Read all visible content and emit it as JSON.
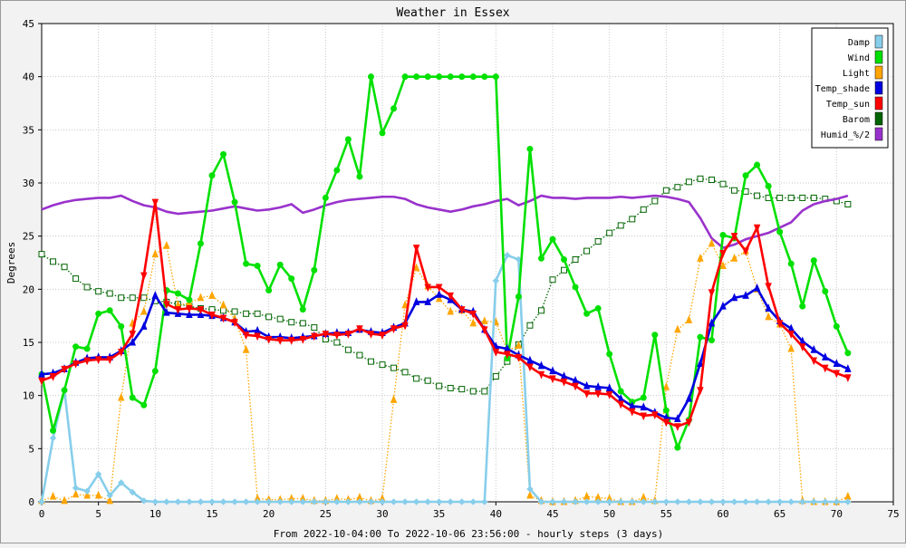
{
  "chart_data": {
    "type": "line",
    "title": "Weather in Essex",
    "ylabel": "Degrees",
    "xlabel": "From 2022-10-04:00 To 2022-10-06 23:56:00 - hourly steps (3 days)",
    "xlim": [
      0,
      75
    ],
    "ylim": [
      0,
      45
    ],
    "xticks": [
      0,
      5,
      10,
      15,
      20,
      25,
      30,
      35,
      40,
      45,
      50,
      55,
      60,
      65,
      70,
      75
    ],
    "yticks": [
      0,
      5,
      10,
      15,
      20,
      25,
      30,
      35,
      40,
      45
    ],
    "grid": true,
    "legend_position": "top-right",
    "series": [
      {
        "name": "Damp",
        "color": "#87ceeb",
        "marker": "diamond",
        "style": "solid",
        "values": [
          0,
          6,
          10.5,
          1.3,
          1,
          2.6,
          0.6,
          1.8,
          0.9,
          0.1,
          0,
          0,
          0,
          0,
          0,
          0,
          0,
          0,
          0,
          0,
          0,
          0,
          0,
          0,
          0,
          0,
          0,
          0,
          0,
          0,
          0,
          0,
          0,
          0,
          0,
          0,
          0,
          0,
          0,
          0,
          20.8,
          23.2,
          22.8,
          1.2,
          0,
          0,
          0,
          0,
          0,
          0,
          0,
          0,
          0,
          0,
          0,
          0,
          0,
          0,
          0,
          0,
          0,
          0,
          0,
          0,
          0,
          0,
          0,
          0,
          0,
          0,
          0,
          0
        ]
      },
      {
        "name": "Wind",
        "color": "#00e000",
        "marker": "circle",
        "style": "solid",
        "values": [
          12,
          6.7,
          10.5,
          14.6,
          14.4,
          17.7,
          18,
          16.5,
          9.8,
          9.1,
          12.3,
          19.9,
          19.6,
          19,
          24.3,
          30.7,
          32.7,
          28.2,
          22.4,
          22.2,
          19.9,
          22.3,
          21,
          18.1,
          21.8,
          28.6,
          31.2,
          34.1,
          30.6,
          40,
          34.7,
          37,
          40,
          40,
          40,
          40,
          40,
          40,
          40,
          40,
          40,
          13.5,
          19.3,
          33.2,
          22.9,
          24.7,
          22.8,
          20.2,
          17.7,
          18.2,
          13.9,
          10.4,
          9.4,
          9.8,
          15.7,
          8.6,
          5.1,
          7.7,
          15.5,
          15.2,
          25.1,
          24.8,
          30.7,
          31.7,
          29.7,
          25.4,
          22.4,
          18.4,
          22.7,
          19.8,
          16.5,
          14
        ]
      },
      {
        "name": "Light",
        "color": "#ffa500",
        "marker": "triangle",
        "style": "dotted",
        "values": [
          0.1,
          0.5,
          0.1,
          0.7,
          0.6,
          0.6,
          0.1,
          9.8,
          16.8,
          17.9,
          23.3,
          24.1,
          18.5,
          18.7,
          19.2,
          19.4,
          18.5,
          17.2,
          14.3,
          0.3,
          0.2,
          0.2,
          0.3,
          0.3,
          0.1,
          0.1,
          0.3,
          0.2,
          0.4,
          0.1,
          0.3,
          9.6,
          18.5,
          22,
          20.3,
          19.1,
          17.9,
          18,
          16.8,
          17,
          16.9,
          14.2,
          14.7,
          0.6,
          0.1,
          0,
          0,
          0.1,
          0.5,
          0.4,
          0.3,
          0,
          0,
          0.4,
          0.1,
          10.8,
          16.2,
          17.1,
          22.9,
          24.3,
          22.2,
          22.9,
          23.6,
          20,
          17.4,
          16.7,
          14.4,
          0.1,
          0,
          0,
          0,
          0.5
        ]
      },
      {
        "name": "Temp_shade",
        "color": "#0000e0",
        "marker": "triangle",
        "style": "solid",
        "values": [
          12,
          12.1,
          12.5,
          13.1,
          13.5,
          13.6,
          13.6,
          14.2,
          15,
          16.5,
          19.4,
          17.8,
          17.7,
          17.6,
          17.6,
          17.5,
          17.3,
          16.9,
          16,
          16.1,
          15.5,
          15.5,
          15.4,
          15.5,
          15.6,
          15.8,
          15.9,
          15.9,
          16.2,
          16,
          15.9,
          16.4,
          16.8,
          18.8,
          18.8,
          19.5,
          19,
          18.1,
          17.9,
          16.2,
          14.6,
          14.4,
          13.8,
          13.3,
          12.8,
          12.3,
          11.8,
          11.4,
          10.9,
          10.8,
          10.7,
          9.7,
          9,
          8.9,
          8.4,
          7.9,
          7.8,
          9.7,
          13,
          16.8,
          18.4,
          19.2,
          19.4,
          20.1,
          18.2,
          17,
          16.3,
          15.1,
          14.3,
          13.6,
          13,
          12.5
        ]
      },
      {
        "name": "Temp_sun",
        "color": "#ff0000",
        "marker": "triangle-down",
        "style": "solid",
        "values": [
          11.4,
          11.8,
          12.5,
          13,
          13.3,
          13.4,
          13.4,
          14.1,
          15.8,
          21.3,
          28.2,
          18.6,
          18.1,
          18.2,
          18.1,
          17.6,
          17.3,
          16.9,
          15.7,
          15.6,
          15.3,
          15.2,
          15.2,
          15.3,
          15.6,
          15.8,
          15.7,
          15.8,
          16.3,
          15.8,
          15.7,
          16.3,
          16.6,
          23.9,
          20.2,
          20.2,
          19.4,
          18.1,
          17.7,
          16.2,
          14.1,
          13.9,
          13.6,
          12.7,
          12,
          11.6,
          11.3,
          10.9,
          10.2,
          10.2,
          10.1,
          9.2,
          8.5,
          8.1,
          8.2,
          7.5,
          7.1,
          7.5,
          10.5,
          19.7,
          23.4,
          25,
          23.6,
          25.8,
          20.3,
          16.8,
          15.8,
          14.6,
          13.3,
          12.6,
          12.1,
          11.7
        ]
      },
      {
        "name": "Barom",
        "color": "#006400",
        "marker": "square",
        "style": "dotted",
        "values": [
          23.3,
          22.6,
          22.1,
          21,
          20.2,
          19.8,
          19.6,
          19.2,
          19.2,
          19.2,
          18.9,
          18.8,
          18.6,
          18.4,
          18.2,
          18.1,
          18,
          17.9,
          17.7,
          17.7,
          17.4,
          17.2,
          16.9,
          16.8,
          16.4,
          15.3,
          15,
          14.3,
          13.8,
          13.2,
          12.9,
          12.6,
          12.2,
          11.6,
          11.4,
          10.9,
          10.7,
          10.6,
          10.4,
          10.4,
          11.8,
          13.2,
          14.8,
          16.6,
          18,
          20.9,
          21.8,
          22.8,
          23.6,
          24.5,
          25.3,
          26,
          26.6,
          27.5,
          28.3,
          29.3,
          29.6,
          30.1,
          30.4,
          30.3,
          29.9,
          29.3,
          29.2,
          28.8,
          28.6,
          28.6,
          28.6,
          28.6,
          28.6,
          28.5,
          28.3,
          28
        ]
      },
      {
        "name": "Humid_%/2",
        "color": "#9932cc",
        "marker": "none",
        "style": "solid",
        "values": [
          27.5,
          27.9,
          28.2,
          28.4,
          28.5,
          28.6,
          28.6,
          28.8,
          28.3,
          27.9,
          27.7,
          27.3,
          27.1,
          27.2,
          27.3,
          27.4,
          27.6,
          27.8,
          27.6,
          27.4,
          27.5,
          27.7,
          28,
          27.2,
          27.5,
          27.9,
          28.2,
          28.4,
          28.5,
          28.6,
          28.7,
          28.7,
          28.5,
          28,
          27.7,
          27.5,
          27.3,
          27.5,
          27.8,
          28,
          28.3,
          28.5,
          27.9,
          28.3,
          28.8,
          28.6,
          28.6,
          28.5,
          28.6,
          28.6,
          28.6,
          28.7,
          28.6,
          28.7,
          28.8,
          28.7,
          28.5,
          28.2,
          26.7,
          24.8,
          23.9,
          24.2,
          24.7,
          25,
          25.3,
          25.8,
          26.3,
          27.4,
          28,
          28.3,
          28.5,
          28.8
        ]
      }
    ]
  }
}
